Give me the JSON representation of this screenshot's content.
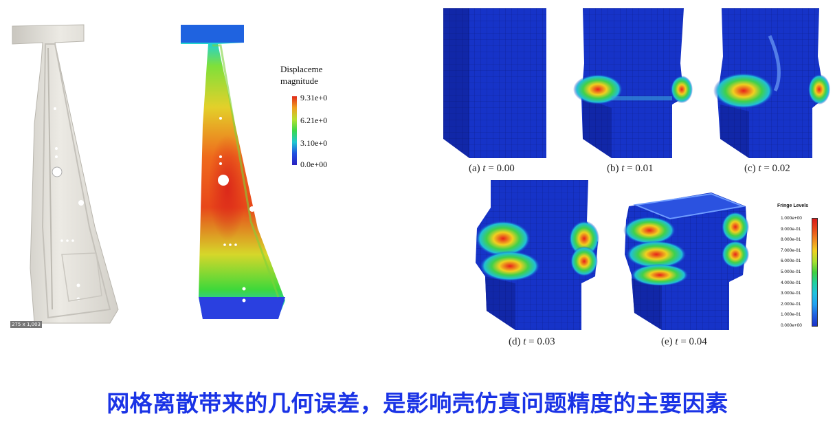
{
  "left_figure": {
    "dimension_tag": "275 x 1,003",
    "legend": {
      "title_line1": "Displaceme",
      "title_line2": "magnitude",
      "ticks": [
        "9.31e+0",
        "6.21e+0",
        "3.10e+0",
        "0.0e+00"
      ]
    }
  },
  "right_figure": {
    "panels": [
      {
        "label": "(a)",
        "var": "t",
        "value": "= 0.00"
      },
      {
        "label": "(b)",
        "var": "t",
        "value": "= 0.01"
      },
      {
        "label": "(c)",
        "var": "t",
        "value": "= 0.02"
      },
      {
        "label": "(d)",
        "var": "t",
        "value": "= 0.03"
      },
      {
        "label": "(e)",
        "var": "t",
        "value": "= 0.04"
      }
    ],
    "fringe_legend": {
      "title": "Fringe Levels",
      "ticks": [
        "1.000e+00",
        "9.000e-01",
        "8.000e-01",
        "7.000e-01",
        "6.000e-01",
        "5.000e-01",
        "4.000e-01",
        "3.000e-01",
        "2.000e-01",
        "1.000e-01",
        "0.000e+00"
      ]
    }
  },
  "banner": {
    "text": "网格离散带来的几何误差，是影响壳仿真问题精度的主要因素"
  },
  "colors": {
    "banner_text": "#1a33e6",
    "mesh_blue": "#1530c8",
    "part_gray": "#e4e2dc"
  }
}
